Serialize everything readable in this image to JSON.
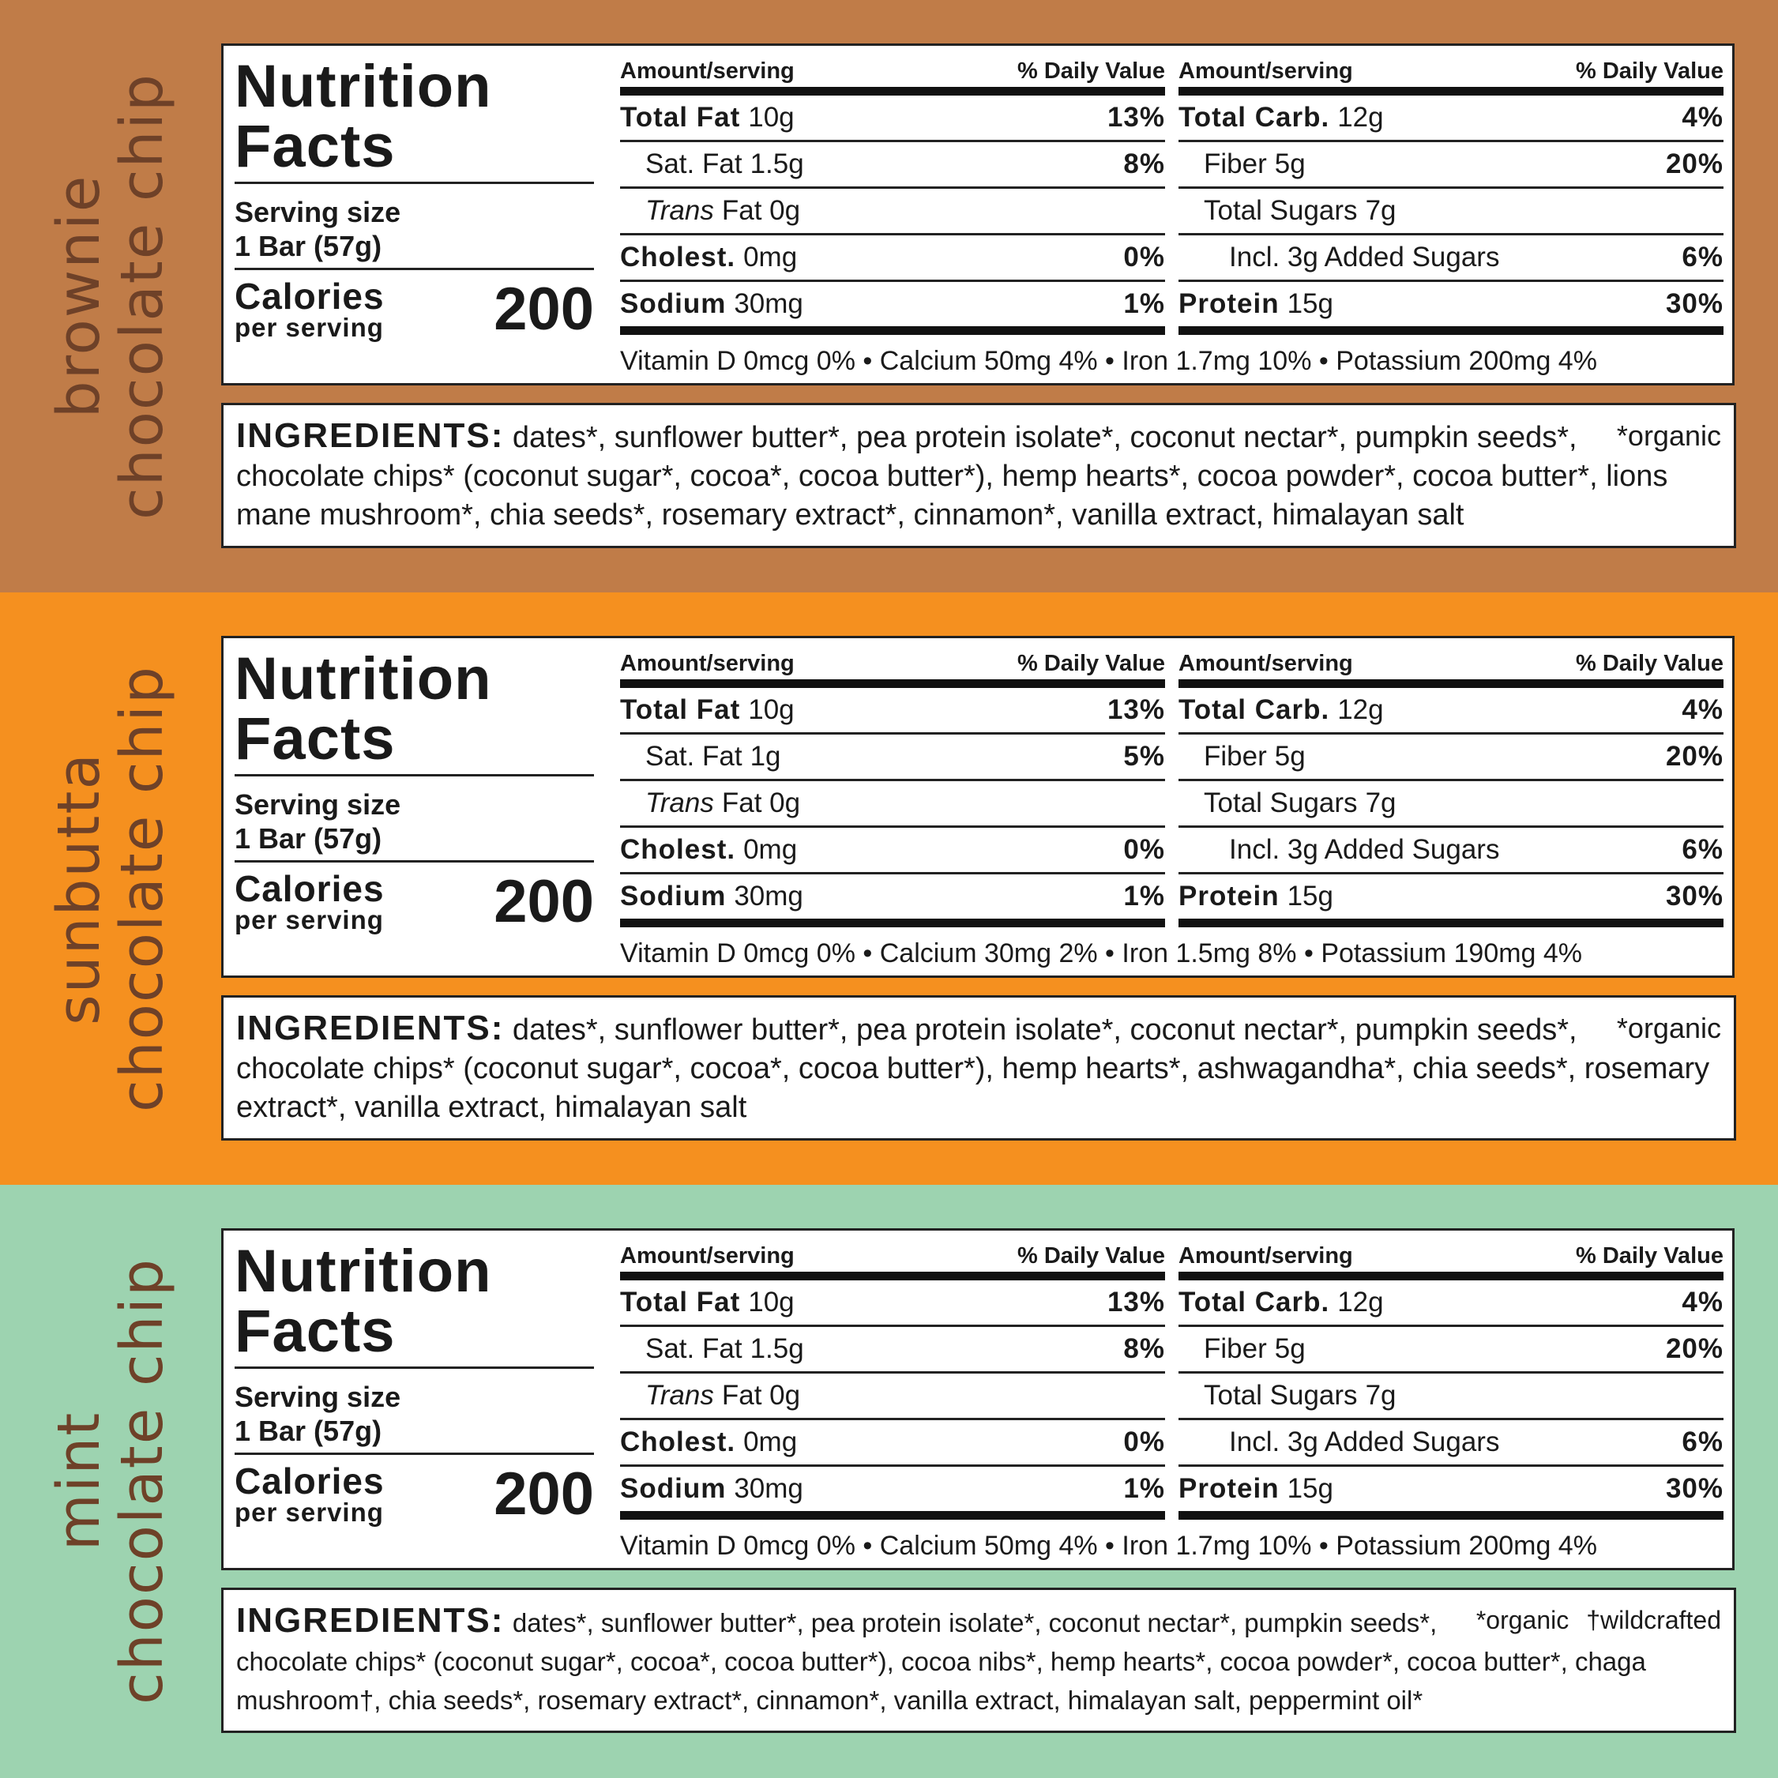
{
  "panels": [
    {
      "product": [
        "brownie",
        "chocolate chip"
      ],
      "nutrition": {
        "title": "Nutrition Facts",
        "serving_label": "Serving size",
        "serving_value": "1 Bar (57g)",
        "calories_label": "Calories",
        "calories_sub": "per serving",
        "calories": "200",
        "tables": [
          {
            "headers": [
              "Amount/serving",
              "% Daily Value"
            ],
            "rows": [
              {
                "label": "Total Fat",
                "amount": "10g",
                "dv": "13%"
              },
              {
                "label": "Sat. Fat",
                "amount": "1.5g",
                "dv": "8%"
              },
              {
                "label": "Trans",
                "amount": "Fat 0g"
              },
              {
                "label": "Cholest.",
                "amount": "0mg",
                "dv": "0%"
              },
              {
                "label": "Sodium",
                "amount": "30mg",
                "dv": "1%"
              }
            ]
          },
          {
            "headers": [
              "Amount/serving",
              "% Daily Value"
            ],
            "rows": [
              {
                "label": "Total Carb.",
                "amount": "12g",
                "dv": "4%"
              },
              {
                "label": "Fiber",
                "amount": "5g",
                "dv": "20%"
              },
              {
                "label": "Total Sugars",
                "amount": "7g"
              },
              {
                "label": "Incl. 3g Added Sugars",
                "dv": "6%"
              },
              {
                "label": "Protein",
                "amount": "15g",
                "dv": "30%"
              }
            ]
          }
        ],
        "vitamins": "Vitamin D 0mcg 0% • Calcium 50mg 4% • Iron 1.7mg 10% • Potassium 200mg 4%"
      },
      "ingredients": {
        "heading": "INGREDIENTS:",
        "text": "dates*, sunflower butter*, pea protein isolate*, coconut nectar*, pumpkin seeds*, chocolate chips* (coconut sugar*, cocoa*, cocoa butter*), hemp hearts*, cocoa powder*, cocoa butter*, lions mane mushroom*, chia seeds*, rosemary extract*, cinnamon*, vanilla extract, himalayan salt",
        "notes": [
          "*organic"
        ]
      }
    },
    {
      "product": [
        "sunbutta",
        "chocolate chip"
      ],
      "nutrition": {
        "title": "Nutrition Facts",
        "serving_label": "Serving size",
        "serving_value": "1 Bar (57g)",
        "calories_label": "Calories",
        "calories_sub": "per serving",
        "calories": "200",
        "tables": [
          {
            "headers": [
              "Amount/serving",
              "% Daily Value"
            ],
            "rows": [
              {
                "label": "Total Fat",
                "amount": "10g",
                "dv": "13%"
              },
              {
                "label": "Sat. Fat",
                "amount": "1g",
                "dv": "5%"
              },
              {
                "label": "Trans",
                "amount": "Fat 0g"
              },
              {
                "label": "Cholest.",
                "amount": "0mg",
                "dv": "0%"
              },
              {
                "label": "Sodium",
                "amount": "30mg",
                "dv": "1%"
              }
            ]
          },
          {
            "headers": [
              "Amount/serving",
              "% Daily Value"
            ],
            "rows": [
              {
                "label": "Total Carb.",
                "amount": "12g",
                "dv": "4%"
              },
              {
                "label": "Fiber",
                "amount": "5g",
                "dv": "20%"
              },
              {
                "label": "Total Sugars",
                "amount": "7g"
              },
              {
                "label": "Incl. 3g Added Sugars",
                "dv": "6%"
              },
              {
                "label": "Protein",
                "amount": "15g",
                "dv": "30%"
              }
            ]
          }
        ],
        "vitamins": "Vitamin D 0mcg 0% • Calcium 30mg 2% • Iron 1.5mg 8% • Potassium 190mg 4%"
      },
      "ingredients": {
        "heading": "INGREDIENTS:",
        "text": "dates*, sunflower butter*, pea protein isolate*, coconut nectar*, pumpkin seeds*, chocolate chips* (coconut sugar*, cocoa*, cocoa butter*), hemp hearts*, ashwagandha*, chia seeds*, rosemary extract*, vanilla extract, himalayan salt",
        "notes": [
          "*organic"
        ]
      }
    },
    {
      "product": [
        "mint",
        "chocolate chip"
      ],
      "nutrition": {
        "title": "Nutrition Facts",
        "serving_label": "Serving size",
        "serving_value": "1 Bar (57g)",
        "calories_label": "Calories",
        "calories_sub": "per serving",
        "calories": "200",
        "tables": [
          {
            "headers": [
              "Amount/serving",
              "% Daily Value"
            ],
            "rows": [
              {
                "label": "Total Fat",
                "amount": "10g",
                "dv": "13%"
              },
              {
                "label": "Sat. Fat",
                "amount": "1.5g",
                "dv": "8%"
              },
              {
                "label": "Trans",
                "amount": "Fat 0g"
              },
              {
                "label": "Cholest.",
                "amount": "0mg",
                "dv": "0%"
              },
              {
                "label": "Sodium",
                "amount": "30mg",
                "dv": "1%"
              }
            ]
          },
          {
            "headers": [
              "Amount/serving",
              "% Daily Value"
            ],
            "rows": [
              {
                "label": "Total Carb.",
                "amount": "12g",
                "dv": "4%"
              },
              {
                "label": "Fiber",
                "amount": "5g",
                "dv": "20%"
              },
              {
                "label": "Total Sugars",
                "amount": "7g"
              },
              {
                "label": "Incl. 3g Added Sugars",
                "dv": "6%"
              },
              {
                "label": "Protein",
                "amount": "15g",
                "dv": "30%"
              }
            ]
          }
        ],
        "vitamins": "Vitamin D 0mcg 0% • Calcium 50mg 4% • Iron 1.7mg 10% • Potassium 200mg 4%"
      },
      "ingredients": {
        "heading": "INGREDIENTS:",
        "text": "dates*, sunflower butter*, pea protein isolate*, coconut nectar*, pumpkin seeds*, chocolate chips* (coconut sugar*, cocoa*, cocoa butter*), cocoa nibs*, hemp hearts*, cocoa powder*, cocoa butter*, chaga mushroom†, chia seeds*, rosemary extract*, cinnamon*, vanilla extract, himalayan salt, peppermint oil*",
        "notes": [
          "*organic",
          "†wildcrafted"
        ]
      }
    }
  ]
}
